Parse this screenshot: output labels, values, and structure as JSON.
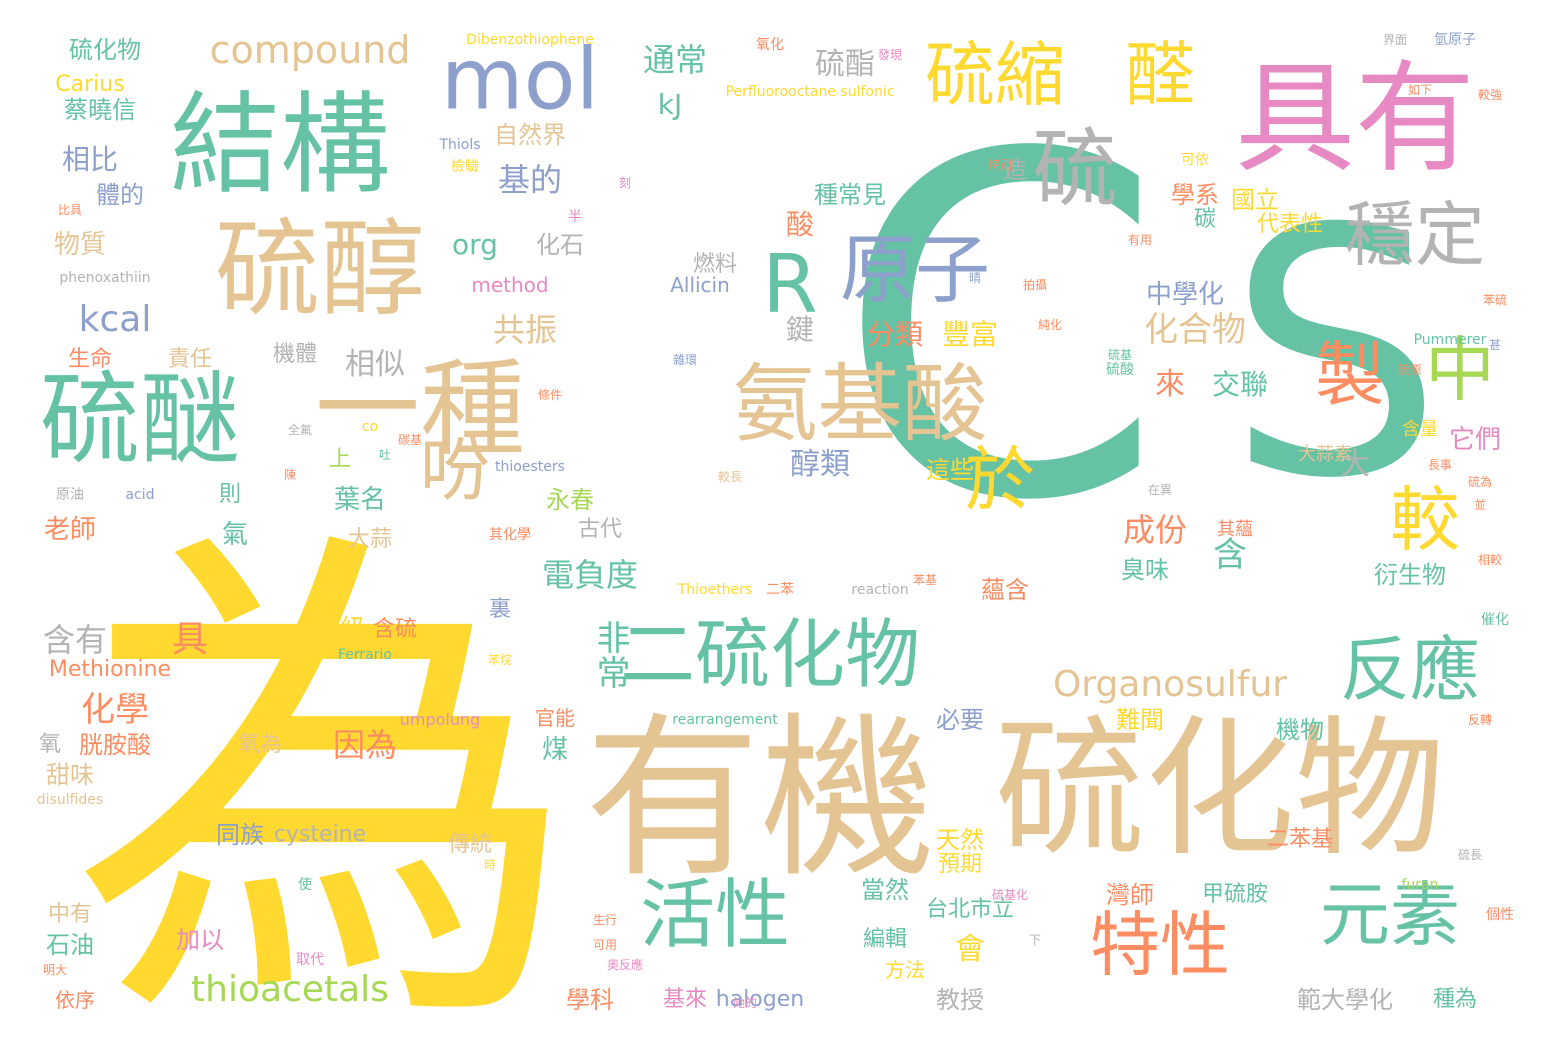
{
  "words": [
    {
      "text": "C",
      "color": "#66c2a5",
      "vertical": false
    },
    {
      "text": "S",
      "color": "#66c2a5",
      "vertical": false
    },
    {
      "text": "為",
      "color": "#ffd92f",
      "vertical": false
    },
    {
      "text": "有機",
      "color": "#e5c494",
      "vertical": false
    },
    {
      "text": "硫化物",
      "color": "#e5c494",
      "vertical": false
    },
    {
      "text": "具有",
      "color": "#e78ac3",
      "vertical": false
    },
    {
      "text": "結構",
      "color": "#66c2a5",
      "vertical": false
    },
    {
      "text": "硫醇",
      "color": "#e5c494",
      "vertical": false
    },
    {
      "text": "硫醚",
      "color": "#66c2a5",
      "vertical": false
    },
    {
      "text": "一種",
      "color": "#e5c494",
      "vertical": false
    },
    {
      "text": "mol",
      "color": "#8da0cb",
      "vertical": false
    },
    {
      "text": "R",
      "color": "#66c2a5",
      "vertical": false
    },
    {
      "text": "原子",
      "color": "#8da0cb",
      "vertical": false
    },
    {
      "text": "氨基酸",
      "color": "#e5c494",
      "vertical": false
    },
    {
      "text": "硫",
      "color": "#b3b3b3",
      "vertical": false
    },
    {
      "text": "硫縮",
      "color": "#ffd92f",
      "vertical": false
    },
    {
      "text": "醛",
      "color": "#ffd92f",
      "vertical": false
    },
    {
      "text": "穩定",
      "color": "#b3b3b3",
      "vertical": false
    },
    {
      "text": "製",
      "color": "#fc8d62",
      "vertical": false
    },
    {
      "text": "中",
      "color": "#a6d854",
      "vertical": false
    },
    {
      "text": "於",
      "color": "#ffd92f",
      "vertical": false
    },
    {
      "text": "較",
      "color": "#ffd92f",
      "vertical": false
    },
    {
      "text": "吩",
      "color": "#e5c494",
      "vertical": false
    },
    {
      "text": "二硫化物",
      "color": "#66c2a5",
      "vertical": false
    },
    {
      "text": "反應",
      "color": "#66c2a5",
      "vertical": false
    },
    {
      "text": "活性",
      "color": "#66c2a5",
      "vertical": false
    },
    {
      "text": "特性",
      "color": "#fc8d62",
      "vertical": false
    },
    {
      "text": "元素",
      "color": "#66c2a5",
      "vertical": false
    },
    {
      "text": "compound",
      "color": "#e5c494",
      "vertical": false
    },
    {
      "text": "Organosulfur",
      "color": "#e5c494",
      "vertical": false
    },
    {
      "text": "thioacetals",
      "color": "#a6d854",
      "vertical": false
    },
    {
      "text": "通常",
      "color": "#66c2a5",
      "vertical": false
    },
    {
      "text": "硫酯",
      "color": "#b3b3b3",
      "vertical": false
    },
    {
      "text": "非常",
      "color": "#66c2a5",
      "vertical": true
    },
    {
      "text": "化合物",
      "color": "#e5c494",
      "vertical": false
    },
    {
      "text": "成份",
      "color": "#fc8d62",
      "vertical": false
    },
    {
      "text": "分類",
      "color": "#fc8d62",
      "vertical": false
    },
    {
      "text": "豐富",
      "color": "#ffd92f",
      "vertical": false
    },
    {
      "text": "電負度",
      "color": "#66c2a5",
      "vertical": false
    },
    {
      "text": "醇類",
      "color": "#8da0cb",
      "vertical": false
    },
    {
      "text": "因為",
      "color": "#fc8d62",
      "vertical": false
    },
    {
      "text": "化學",
      "color": "#fc8d62",
      "vertical": false
    },
    {
      "text": "具",
      "color": "#fc8d62",
      "vertical": false
    },
    {
      "text": "含有",
      "color": "#b3b3b3",
      "vertical": false
    },
    {
      "text": "含",
      "color": "#66c2a5",
      "vertical": false
    },
    {
      "text": "會",
      "color": "#ffd92f",
      "vertical": false
    },
    {
      "text": "基的",
      "color": "#8da0cb",
      "vertical": false
    },
    {
      "text": "共振",
      "color": "#e5c494",
      "vertical": false
    },
    {
      "text": "相似",
      "color": "#b3b3b3",
      "vertical": false
    },
    {
      "text": "kcal",
      "color": "#8da0cb",
      "vertical": false
    },
    {
      "text": "kJ",
      "color": "#66c2a5",
      "vertical": false
    },
    {
      "text": "org",
      "color": "#66c2a5",
      "vertical": false
    },
    {
      "text": "化石",
      "color": "#b3b3b3",
      "vertical": false
    },
    {
      "text": "物質",
      "color": "#e5c494",
      "vertical": false
    },
    {
      "text": "相比",
      "color": "#8da0cb",
      "vertical": false
    },
    {
      "text": "硫化物",
      "color": "#66c2a5",
      "vertical": false
    },
    {
      "text": "Carius",
      "color": "#ffd92f",
      "vertical": false
    },
    {
      "text": "蔡曉信",
      "color": "#66c2a5",
      "vertical": false
    },
    {
      "text": "體的",
      "color": "#8da0cb",
      "vertical": false
    },
    {
      "text": "自然界",
      "color": "#e5c494",
      "vertical": false
    },
    {
      "text": "酸",
      "color": "#fc8d62",
      "vertical": false
    },
    {
      "text": "鍵",
      "color": "#b3b3b3",
      "vertical": false
    },
    {
      "text": "燃料",
      "color": "#b3b3b3",
      "vertical": false
    },
    {
      "text": "種常見",
      "color": "#66c2a5",
      "vertical": false
    },
    {
      "text": "造",
      "color": "#b3b3b3",
      "vertical": false
    },
    {
      "text": "來",
      "color": "#fc8d62",
      "vertical": false
    },
    {
      "text": "交聯",
      "color": "#66c2a5",
      "vertical": false
    },
    {
      "text": "大",
      "color": "#b3b3b3",
      "vertical": false
    },
    {
      "text": "中學化",
      "color": "#8da0cb",
      "vertical": false
    },
    {
      "text": "學系",
      "color": "#fc8d62",
      "vertical": false
    },
    {
      "text": "國立",
      "color": "#ffd92f",
      "vertical": false
    },
    {
      "text": "碳",
      "color": "#66c2a5",
      "vertical": false
    },
    {
      "text": "代表性",
      "color": "#ffd92f",
      "vertical": false
    },
    {
      "text": "它們",
      "color": "#e78ac3",
      "vertical": false
    },
    {
      "text": "臭味",
      "color": "#66c2a5",
      "vertical": false
    },
    {
      "text": "永春",
      "color": "#a6d854",
      "vertical": false
    },
    {
      "text": "古代",
      "color": "#b3b3b3",
      "vertical": false
    },
    {
      "text": "葉名",
      "color": "#66c2a5",
      "vertical": false
    },
    {
      "text": "這些",
      "color": "#ffd92f",
      "vertical": false
    },
    {
      "text": "衍生物",
      "color": "#66c2a5",
      "vertical": false
    },
    {
      "text": "高級",
      "color": "#ffd92f",
      "vertical": false
    },
    {
      "text": "含硫",
      "color": "#fc8d62",
      "vertical": false
    },
    {
      "text": "裏",
      "color": "#8da0cb",
      "vertical": false
    },
    {
      "text": "必要",
      "color": "#8da0cb",
      "vertical": false
    },
    {
      "text": "蘊含",
      "color": "#fc8d62",
      "vertical": false
    },
    {
      "text": "難聞",
      "color": "#ffd92f",
      "vertical": false
    },
    {
      "text": "機物",
      "color": "#66c2a5",
      "vertical": false
    },
    {
      "text": "天然",
      "color": "#ffd92f",
      "vertical": false
    },
    {
      "text": "預期",
      "color": "#ffd92f",
      "vertical": false
    },
    {
      "text": "當然",
      "color": "#66c2a5",
      "vertical": false
    },
    {
      "text": "台北市立",
      "color": "#66c2a5",
      "vertical": false
    },
    {
      "text": "灣師",
      "color": "#fc8d62",
      "vertical": false
    },
    {
      "text": "甲硫胺",
      "color": "#66c2a5",
      "vertical": false
    },
    {
      "text": "二苯基",
      "color": "#fc8d62",
      "vertical": false
    },
    {
      "text": "編輯",
      "color": "#66c2a5",
      "vertical": false
    },
    {
      "text": "方法",
      "color": "#ffd92f",
      "vertical": false
    },
    {
      "text": "教授",
      "color": "#b3b3b3",
      "vertical": false
    },
    {
      "text": "學科",
      "color": "#fc8d62",
      "vertical": false
    },
    {
      "text": "範大學化",
      "color": "#b3b3b3",
      "vertical": false
    },
    {
      "text": "種為",
      "color": "#66c2a5",
      "vertical": false
    },
    {
      "text": "halogen",
      "color": "#8da0cb",
      "vertical": false
    },
    {
      "text": "基來",
      "color": "#e78ac3",
      "vertical": false
    },
    {
      "text": "同族",
      "color": "#8da0cb",
      "vertical": false
    },
    {
      "text": "cysteine",
      "color": "#b3b3b3",
      "vertical": false
    },
    {
      "text": "傳統",
      "color": "#e5c494",
      "vertical": false
    },
    {
      "text": "加以",
      "color": "#e78ac3",
      "vertical": false
    },
    {
      "text": "依序",
      "color": "#fc8d62",
      "vertical": false
    },
    {
      "text": "石油",
      "color": "#66c2a5",
      "vertical": false
    },
    {
      "text": "中有",
      "color": "#e5c494",
      "vertical": false
    },
    {
      "text": "甜味",
      "color": "#e5c494",
      "vertical": false
    },
    {
      "text": "氧",
      "color": "#b3b3b3",
      "vertical": false
    },
    {
      "text": "胱胺酸",
      "color": "#fc8d62",
      "vertical": false
    },
    {
      "text": "氧為",
      "color": "#e5c494",
      "vertical": false
    },
    {
      "text": "煤",
      "color": "#66c2a5",
      "vertical": false
    },
    {
      "text": "官能",
      "color": "#fc8d62",
      "vertical": false
    },
    {
      "text": "Methionine",
      "color": "#fc8d62",
      "vertical": false
    },
    {
      "text": "老師",
      "color": "#fc8d62",
      "vertical": false
    },
    {
      "text": "氣",
      "color": "#66c2a5",
      "vertical": false
    },
    {
      "text": "則",
      "color": "#66c2a5",
      "vertical": false
    },
    {
      "text": "上",
      "color": "#a6d854",
      "vertical": false
    },
    {
      "text": "大蒜",
      "color": "#e5c494",
      "vertical": false
    },
    {
      "text": "生命",
      "color": "#fc8d62",
      "vertical": false
    },
    {
      "text": "責任",
      "color": "#e5c494",
      "vertical": false
    },
    {
      "text": "機體",
      "color": "#b3b3b3",
      "vertical": false
    },
    {
      "text": "method",
      "color": "#e78ac3",
      "vertical": false
    },
    {
      "text": "Allicin",
      "color": "#8da0cb",
      "vertical": false
    },
    {
      "text": "大蒜素",
      "color": "#e5c494",
      "vertical": false
    },
    {
      "text": "含量",
      "color": "#ffd92f",
      "vertical": false
    },
    {
      "text": "其蘊",
      "color": "#fc8d62",
      "vertical": false
    },
    {
      "text": "Dibenzothiophene",
      "color": "#ffd92f",
      "vertical": false
    },
    {
      "text": "Perfluorooctane sulfonic",
      "color": "#ffd92f",
      "vertical": false
    },
    {
      "text": "Thiols",
      "color": "#8da0cb",
      "vertical": false
    },
    {
      "text": "檢驗",
      "color": "#ffd92f",
      "vertical": false
    },
    {
      "text": "可依",
      "color": "#ffd92f",
      "vertical": false
    },
    {
      "text": "氧化",
      "color": "#fc8d62",
      "vertical": false
    },
    {
      "text": "界面",
      "color": "#b3b3b3",
      "vertical": false
    },
    {
      "text": "氫原子",
      "color": "#8da0cb",
      "vertical": false
    },
    {
      "text": "如下",
      "color": "#fc8d62",
      "vertical": false
    },
    {
      "text": "較強",
      "color": "#fc8d62",
      "vertical": false
    },
    {
      "text": "Pummerer",
      "color": "#66c2a5",
      "vertical": false
    },
    {
      "text": "phenoxathiin",
      "color": "#b3b3b3",
      "vertical": false
    },
    {
      "text": "比具",
      "color": "#fc8d62",
      "vertical": false
    },
    {
      "text": "thioesters",
      "color": "#8da0cb",
      "vertical": false
    },
    {
      "text": "Thioethers",
      "color": "#ffd92f",
      "vertical": false
    },
    {
      "text": "reaction",
      "color": "#b3b3b3",
      "vertical": false
    },
    {
      "text": "rearrangement",
      "color": "#66c2a5",
      "vertical": false
    },
    {
      "text": "umpolung",
      "color": "#e78ac3",
      "vertical": false
    },
    {
      "text": "Ferrario",
      "color": "#66c2a5",
      "vertical": false
    },
    {
      "text": "disulfides",
      "color": "#e5c494",
      "vertical": false
    },
    {
      "text": "acid",
      "color": "#8da0cb",
      "vertical": false
    },
    {
      "text": "原油",
      "color": "#b3b3b3",
      "vertical": false
    },
    {
      "text": "co",
      "color": "#ffd92f",
      "vertical": false
    },
    {
      "text": "furan",
      "color": "#a6d854",
      "vertical": false
    },
    {
      "text": "二苯",
      "color": "#fc8d62",
      "vertical": false
    },
    {
      "text": "苯烷",
      "color": "#ffd92f",
      "vertical": false
    },
    {
      "text": "其化學",
      "color": "#fc8d62",
      "vertical": false
    },
    {
      "text": "半",
      "color": "#e78ac3",
      "vertical": false
    },
    {
      "text": "刻",
      "color": "#e78ac3",
      "vertical": false
    },
    {
      "text": "特別",
      "color": "#fc8d62",
      "vertical": false
    },
    {
      "text": "發現",
      "color": "#e78ac3",
      "vertical": false
    },
    {
      "text": "有用",
      "color": "#fc8d62",
      "vertical": false
    },
    {
      "text": "拍攝",
      "color": "#fc8d62",
      "vertical": false
    },
    {
      "text": "晴",
      "color": "#8da0cb",
      "vertical": false
    },
    {
      "text": "純化",
      "color": "#fc8d62",
      "vertical": false
    },
    {
      "text": "硫基",
      "color": "#66c2a5",
      "vertical": false
    },
    {
      "text": "條件",
      "color": "#fc8d62",
      "vertical": false
    },
    {
      "text": "較長",
      "color": "#e5c494",
      "vertical": false
    },
    {
      "text": "在異",
      "color": "#b3b3b3",
      "vertical": false
    },
    {
      "text": "硫為",
      "color": "#fc8d62",
      "vertical": false
    },
    {
      "text": "相較",
      "color": "#fc8d62",
      "vertical": false
    },
    {
      "text": "催化",
      "color": "#66c2a5",
      "vertical": false
    },
    {
      "text": "個性",
      "color": "#fc8d62",
      "vertical": false
    },
    {
      "text": "生行",
      "color": "#fc8d62",
      "vertical": false
    },
    {
      "text": "可用",
      "color": "#fc8d62",
      "vertical": false
    },
    {
      "text": "硫基化",
      "color": "#e78ac3",
      "vertical": false
    },
    {
      "text": "取代",
      "color": "#e78ac3",
      "vertical": false
    },
    {
      "text": "下",
      "color": "#b3b3b3",
      "vertical": false
    },
    {
      "text": "使",
      "color": "#66c2a5",
      "vertical": false
    },
    {
      "text": "明大",
      "color": "#fc8d62",
      "vertical": false
    },
    {
      "text": "全氟",
      "color": "#b3b3b3",
      "vertical": false
    },
    {
      "text": "吐",
      "color": "#66c2a5",
      "vertical": false
    },
    {
      "text": "陳",
      "color": "#fc8d62",
      "vertical": false
    },
    {
      "text": "碳基",
      "color": "#fc8d62",
      "vertical": false
    },
    {
      "text": "奧反應",
      "color": "#e78ac3",
      "vertical": false
    },
    {
      "text": "她的",
      "color": "#e78ac3",
      "vertical": false
    },
    {
      "text": "硫長",
      "color": "#b3b3b3",
      "vertical": false
    },
    {
      "text": "時",
      "color": "#ffd92f",
      "vertical": false
    },
    {
      "text": "長事",
      "color": "#fc8d62",
      "vertical": false
    },
    {
      "text": "並",
      "color": "#fc8d62",
      "vertical": false
    },
    {
      "text": "反轉",
      "color": "#fc8d62",
      "vertical": false
    },
    {
      "text": "苯基",
      "color": "#fc8d62",
      "vertical": false
    },
    {
      "text": "硫酸",
      "color": "#66c2a5",
      "vertical": false
    },
    {
      "text": "苯硫",
      "color": "#fc8d62",
      "vertical": false
    },
    {
      "text": "硫原",
      "color": "#fc8d62",
      "vertical": false
    },
    {
      "text": "甚",
      "color": "#8da0cb",
      "vertical": false
    },
    {
      "text": "雜環",
      "color": "#8da0cb",
      "vertical": false
    }
  ]
}
